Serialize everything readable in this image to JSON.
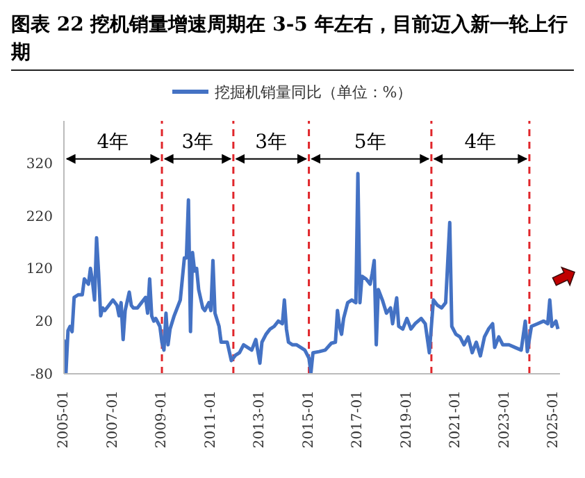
{
  "chart_data": {
    "type": "line",
    "title": "图表 22 挖机销量增速周期在 3-5 年左右，目前迈入新一轮上行期",
    "series": [
      {
        "name": "挖掘机销量同比（单位：%）",
        "color": "#4472c4",
        "x": [
          "2005-01",
          "2005-02",
          "2005-03",
          "2005-04",
          "2005-05",
          "2005-06",
          "2005-08",
          "2005-10",
          "2005-11",
          "2006-01",
          "2006-02",
          "2006-03",
          "2006-04",
          "2006-05",
          "2006-06",
          "2006-07",
          "2006-08",
          "2006-09",
          "2006-11",
          "2007-01",
          "2007-03",
          "2007-04",
          "2007-05",
          "2007-06",
          "2007-07",
          "2007-09",
          "2007-10",
          "2007-11",
          "2008-01",
          "2008-03",
          "2008-05",
          "2008-06",
          "2008-07",
          "2008-08",
          "2008-09",
          "2008-10",
          "2008-12",
          "2009-01",
          "2009-02",
          "2009-03",
          "2009-04",
          "2009-05",
          "2009-07",
          "2009-09",
          "2009-10",
          "2009-12",
          "2010-01",
          "2010-02",
          "2010-03",
          "2010-04",
          "2010-05",
          "2010-06",
          "2010-07",
          "2010-09",
          "2010-10",
          "2010-12",
          "2011-01",
          "2011-02",
          "2011-03",
          "2011-05",
          "2011-06",
          "2011-09",
          "2011-11",
          "2012-01",
          "2012-03",
          "2012-05",
          "2012-07",
          "2012-09",
          "2012-11",
          "2013-01",
          "2013-02",
          "2013-04",
          "2013-06",
          "2013-08",
          "2013-10",
          "2013-12",
          "2014-01",
          "2014-02",
          "2014-03",
          "2014-05",
          "2014-07",
          "2014-09",
          "2014-11",
          "2015-01",
          "2015-02",
          "2015-03",
          "2015-06",
          "2015-09",
          "2015-12",
          "2016-02",
          "2016-03",
          "2016-04",
          "2016-05",
          "2016-06",
          "2016-08",
          "2016-10",
          "2016-12",
          "2017-01",
          "2017-02",
          "2017-03",
          "2017-05",
          "2017-07",
          "2017-08",
          "2017-09",
          "2017-10",
          "2017-11",
          "2018-01",
          "2018-03",
          "2018-05",
          "2018-06",
          "2018-08",
          "2018-09",
          "2018-11",
          "2019-01",
          "2019-03",
          "2019-05",
          "2019-08",
          "2019-10",
          "2019-12",
          "2020-02",
          "2020-04",
          "2020-06",
          "2020-08",
          "2020-10",
          "2020-11",
          "2021-01",
          "2021-03",
          "2021-05",
          "2021-07",
          "2021-09",
          "2021-11",
          "2022-01",
          "2022-03",
          "2022-05",
          "2022-07",
          "2022-08",
          "2022-10",
          "2022-12",
          "2023-03",
          "2023-06",
          "2023-09",
          "2023-11",
          "2023-12",
          "2024-02",
          "2024-05",
          "2024-08",
          "2024-10",
          "2024-11",
          "2024-12",
          "2025-02",
          "2025-03"
        ],
        "values": [
          -15,
          -78,
          2,
          10,
          0,
          65,
          70,
          70,
          100,
          90,
          120,
          95,
          60,
          178,
          110,
          30,
          45,
          40,
          50,
          60,
          50,
          30,
          55,
          -15,
          40,
          75,
          50,
          45,
          45,
          55,
          65,
          35,
          100,
          30,
          20,
          25,
          10,
          -20,
          -35,
          35,
          -25,
          5,
          30,
          50,
          60,
          140,
          140,
          250,
          0,
          150,
          115,
          120,
          80,
          45,
          40,
          55,
          40,
          135,
          35,
          10,
          -20,
          -20,
          -55,
          -45,
          -40,
          -25,
          -30,
          -35,
          -15,
          -60,
          -20,
          -5,
          5,
          10,
          20,
          15,
          60,
          5,
          -20,
          -25,
          -25,
          -30,
          -35,
          -50,
          -78,
          -40,
          -38,
          -35,
          -22,
          -20,
          40,
          10,
          -5,
          25,
          55,
          60,
          55,
          300,
          55,
          105,
          100,
          90,
          110,
          135,
          -25,
          80,
          60,
          35,
          45,
          15,
          64,
          10,
          5,
          25,
          5,
          15,
          25,
          15,
          -40,
          60,
          50,
          45,
          55,
          207,
          10,
          -5,
          -10,
          -25,
          -10,
          -40,
          -20,
          -46,
          -10,
          5,
          15,
          -30,
          -10,
          -25,
          -25,
          -30,
          -35,
          20,
          -38,
          10,
          15,
          20,
          15,
          60,
          10,
          20,
          5
        ]
      }
    ],
    "xlim": [
      "2005-01",
      "2025-04"
    ],
    "xticks": [
      "2005-01",
      "2007-01",
      "2009-01",
      "2011-01",
      "2013-01",
      "2015-01",
      "2017-01",
      "2019-01",
      "2021-01",
      "2023-01",
      "2025-01"
    ],
    "ylim": [
      -80,
      400
    ],
    "yticks": [
      -80,
      20,
      120,
      220,
      320
    ],
    "ref_lines": [
      {
        "axis": "x",
        "value": "2009-01",
        "color": "#e0262b",
        "line_style": "dashed"
      },
      {
        "axis": "x",
        "value": "2011-12",
        "color": "#e0262b",
        "line_style": "dashed"
      },
      {
        "axis": "x",
        "value": "2015-01",
        "color": "#e0262b",
        "line_style": "dashed"
      },
      {
        "axis": "x",
        "value": "2020-01",
        "color": "#e0262b",
        "line_style": "dashed"
      },
      {
        "axis": "x",
        "value": "2024-01",
        "color": "#e0262b",
        "line_style": "dashed"
      }
    ],
    "annotations": [
      {
        "text": "4年",
        "x": "2009-01",
        "y": 320
      },
      {
        "text": "3年",
        "x": "2011-12",
        "y": 320
      },
      {
        "text": "3年",
        "x": "2015-01",
        "y": 320
      },
      {
        "text": "5年",
        "x": "2020-01",
        "y": 320
      },
      {
        "text": "4年",
        "x": "2024-01",
        "y": 320
      }
    ],
    "legend": "top",
    "grid": false,
    "marker": "none",
    "line_style": "solid"
  }
}
